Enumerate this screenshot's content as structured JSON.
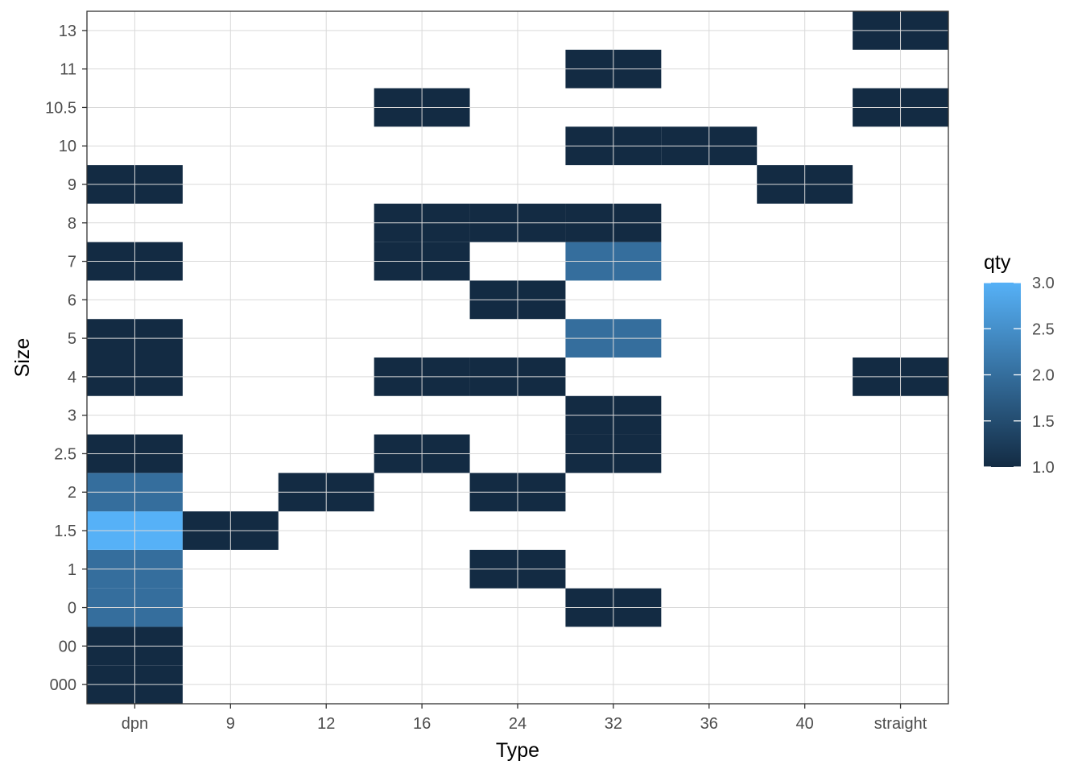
{
  "chart_data": {
    "type": "heatmap",
    "xlabel": "Type",
    "ylabel": "Size",
    "x_categories": [
      "dpn",
      "9",
      "12",
      "16",
      "24",
      "32",
      "36",
      "40",
      "straight"
    ],
    "y_categories": [
      "000",
      "00",
      "0",
      "1",
      "1.5",
      "2",
      "2.5",
      "3",
      "4",
      "5",
      "6",
      "7",
      "8",
      "9",
      "10",
      "10.5",
      "11",
      "13"
    ],
    "cells": [
      {
        "x": "dpn",
        "y": "000",
        "qty": 1
      },
      {
        "x": "dpn",
        "y": "00",
        "qty": 1
      },
      {
        "x": "dpn",
        "y": "0",
        "qty": 2
      },
      {
        "x": "dpn",
        "y": "1",
        "qty": 2
      },
      {
        "x": "dpn",
        "y": "1.5",
        "qty": 3
      },
      {
        "x": "dpn",
        "y": "2",
        "qty": 2
      },
      {
        "x": "dpn",
        "y": "2.5",
        "qty": 1
      },
      {
        "x": "dpn",
        "y": "4",
        "qty": 1
      },
      {
        "x": "dpn",
        "y": "5",
        "qty": 1
      },
      {
        "x": "dpn",
        "y": "7",
        "qty": 1
      },
      {
        "x": "dpn",
        "y": "9",
        "qty": 1
      },
      {
        "x": "9",
        "y": "1.5",
        "qty": 1
      },
      {
        "x": "12",
        "y": "2",
        "qty": 1
      },
      {
        "x": "16",
        "y": "2.5",
        "qty": 1
      },
      {
        "x": "16",
        "y": "4",
        "qty": 1
      },
      {
        "x": "16",
        "y": "7",
        "qty": 1
      },
      {
        "x": "16",
        "y": "8",
        "qty": 1
      },
      {
        "x": "16",
        "y": "10.5",
        "qty": 1
      },
      {
        "x": "24",
        "y": "1",
        "qty": 1
      },
      {
        "x": "24",
        "y": "2",
        "qty": 1
      },
      {
        "x": "24",
        "y": "4",
        "qty": 1
      },
      {
        "x": "24",
        "y": "6",
        "qty": 1
      },
      {
        "x": "24",
        "y": "8",
        "qty": 1
      },
      {
        "x": "32",
        "y": "0",
        "qty": 1
      },
      {
        "x": "32",
        "y": "2.5",
        "qty": 1
      },
      {
        "x": "32",
        "y": "3",
        "qty": 1
      },
      {
        "x": "32",
        "y": "5",
        "qty": 2
      },
      {
        "x": "32",
        "y": "7",
        "qty": 2
      },
      {
        "x": "32",
        "y": "8",
        "qty": 1
      },
      {
        "x": "32",
        "y": "10",
        "qty": 1
      },
      {
        "x": "32",
        "y": "11",
        "qty": 1
      },
      {
        "x": "36",
        "y": "10",
        "qty": 1
      },
      {
        "x": "40",
        "y": "9",
        "qty": 1
      },
      {
        "x": "straight",
        "y": "4",
        "qty": 1
      },
      {
        "x": "straight",
        "y": "10.5",
        "qty": 1
      },
      {
        "x": "straight",
        "y": "13",
        "qty": 1
      }
    ],
    "legend": {
      "title": "qty",
      "min": 1.0,
      "max": 3.0,
      "ticks": [
        "1.0",
        "1.5",
        "2.0",
        "2.5",
        "3.0"
      ],
      "low_color": "#132B43",
      "high_color": "#56B1F7",
      "placement": "right"
    },
    "grid": true,
    "colors": {
      "panel_background": "#ffffff",
      "grid": "#d9d9d9",
      "border": "#333333"
    }
  }
}
